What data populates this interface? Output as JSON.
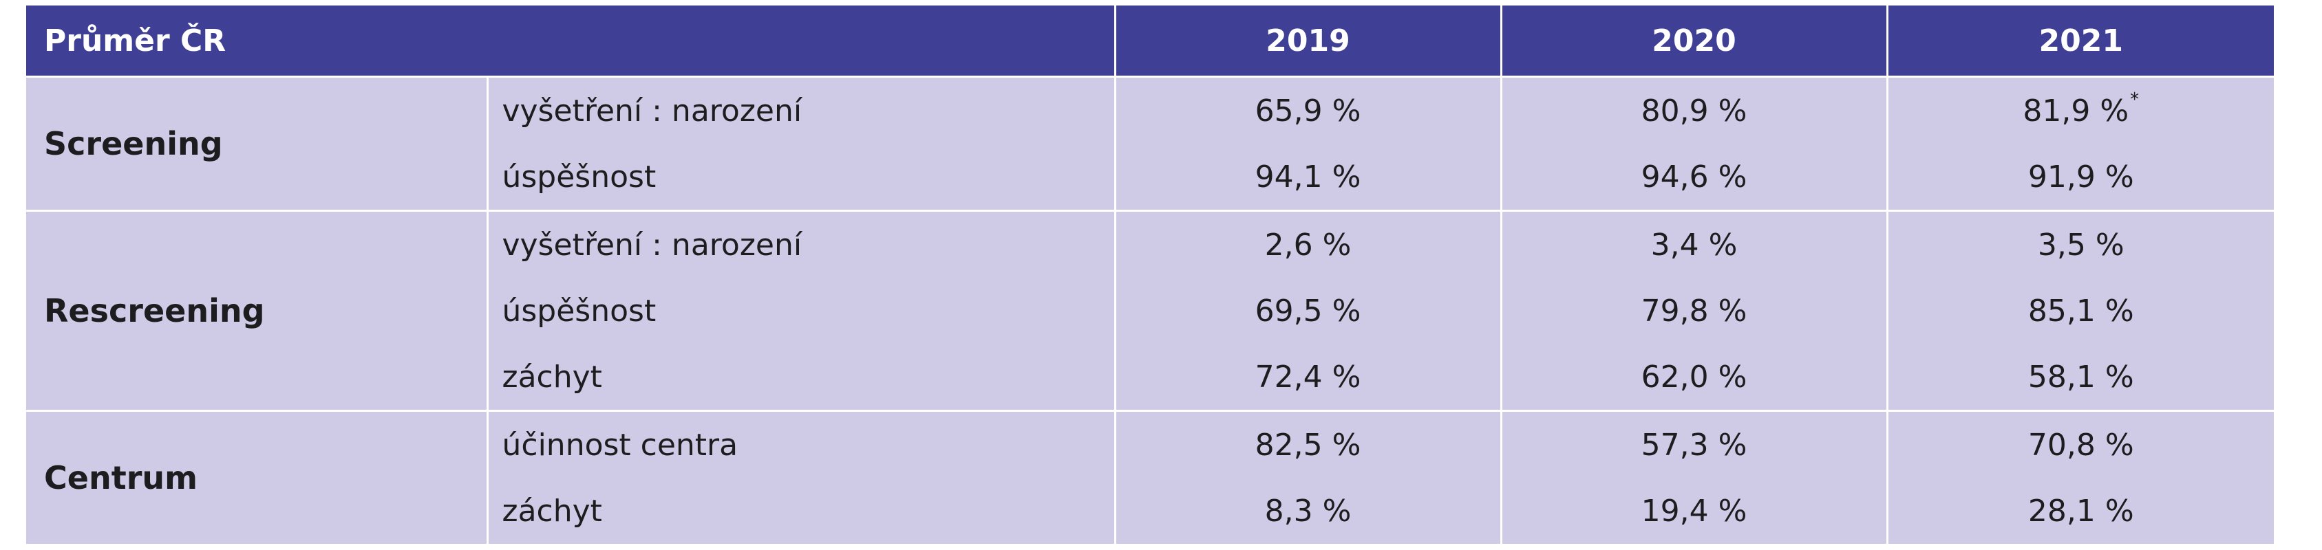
{
  "header": {
    "title": "Průměr ČR",
    "years": [
      "2019",
      "2020",
      "2021"
    ]
  },
  "groups": [
    {
      "name": "Screening",
      "rows": [
        {
          "metric": "vyšetření : narození",
          "values": [
            "65,9 %",
            "80,9 %",
            "81,9 %"
          ],
          "notes": [
            "",
            "",
            "*"
          ]
        },
        {
          "metric": "úspěšnost",
          "values": [
            "94,1 %",
            "94,6 %",
            "91,9 %"
          ],
          "notes": [
            "",
            "",
            ""
          ]
        }
      ]
    },
    {
      "name": "Rescreening",
      "rows": [
        {
          "metric": "vyšetření : narození",
          "values": [
            "2,6 %",
            "3,4 %",
            "3,5 %"
          ],
          "notes": [
            "",
            "",
            ""
          ]
        },
        {
          "metric": "úspěšnost",
          "values": [
            "69,5 %",
            "79,8 %",
            "85,1 %"
          ],
          "notes": [
            "",
            "",
            ""
          ]
        },
        {
          "metric": "záchyt",
          "values": [
            "72,4 %",
            "62,0 %",
            "58,1 %"
          ],
          "notes": [
            "",
            "",
            ""
          ]
        }
      ]
    },
    {
      "name": "Centrum",
      "rows": [
        {
          "metric": "účinnost centra",
          "values": [
            "82,5 %",
            "57,3 %",
            "70,8 %"
          ],
          "notes": [
            "",
            "",
            ""
          ]
        },
        {
          "metric": "záchyt",
          "values": [
            "8,3 %",
            "19,4 %",
            "28,1 %"
          ],
          "notes": [
            "",
            "",
            ""
          ]
        }
      ]
    }
  ],
  "colors": {
    "header_bg": "#3f4095",
    "row_bg": "#cfcbe6",
    "header_text": "#ffffff",
    "body_text": "#1d1d1f"
  }
}
